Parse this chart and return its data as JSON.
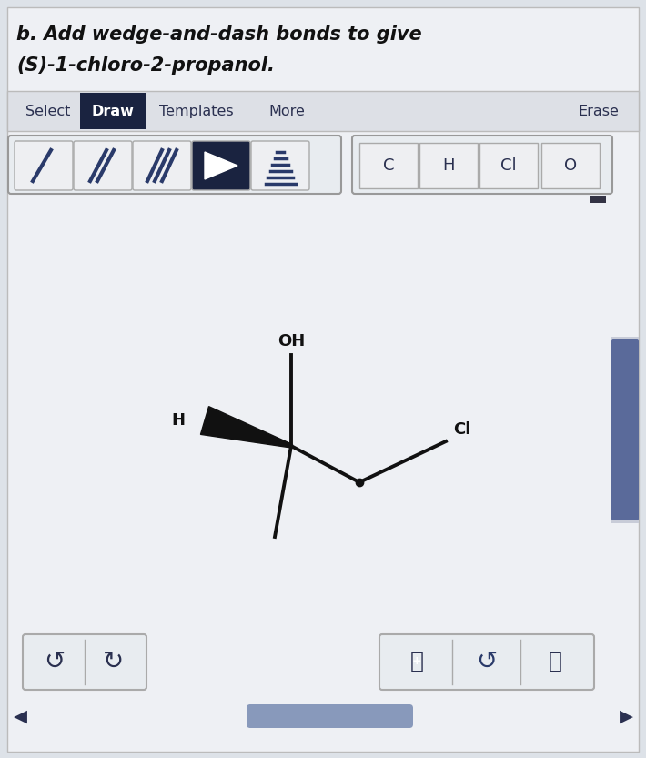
{
  "title_line1": "b. Add wedge-and-dash bonds to give",
  "title_line2": "(S)-1-chloro-2-propanol.",
  "bg_color": "#dde2e8",
  "panel_bg": "#e8ecf0",
  "toolbar_bg": "#d8dce2",
  "draw_btn_bg": "#1a2340",
  "scrollbar_color": "#5a6a9a",
  "line_color": "#111111",
  "text_color": "#2a3050",
  "btn_border": "#aaaaaa",
  "oh_label": "OH",
  "h_label": "H",
  "cl_label": "Cl",
  "atom_labels": [
    "C",
    "H",
    "Cl",
    "O"
  ],
  "icon_color": "#2a3a6a"
}
